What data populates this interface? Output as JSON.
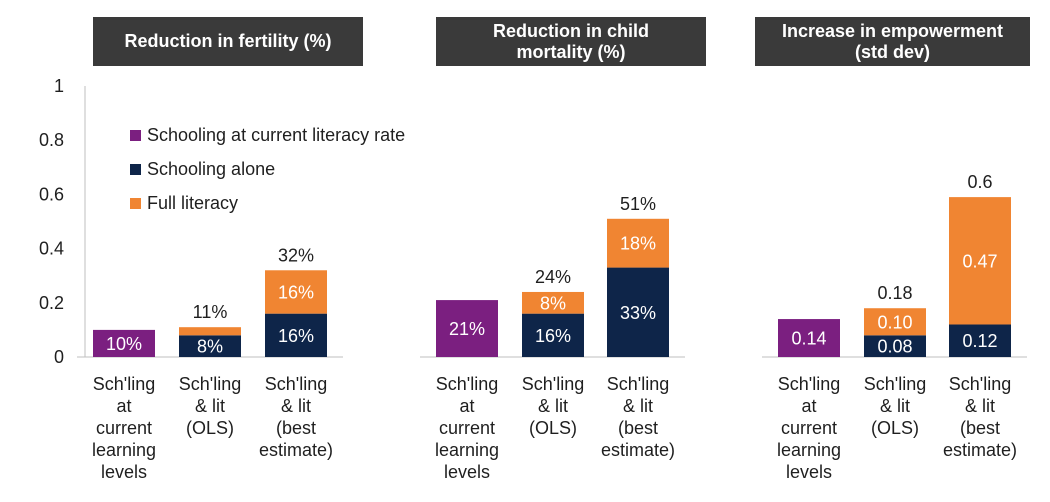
{
  "chart_data": {
    "type": "bar",
    "stacked": true,
    "ylim": [
      0,
      1
    ],
    "yticks": [
      "0",
      "0.2",
      "0.4",
      "0.6",
      "0.8",
      "1"
    ],
    "grid": false,
    "legend": {
      "position": "top-left",
      "entries": [
        {
          "label": "Schooling at current literacy rate",
          "color": "#7b1f80"
        },
        {
          "label": "Schooling alone",
          "color": "#0e2549"
        },
        {
          "label": "Full literacy",
          "color": "#f08532"
        }
      ]
    },
    "colors": {
      "schooling_current": "#7b1f80",
      "schooling_alone": "#0e2549",
      "full_literacy": "#f08532"
    },
    "panels": [
      {
        "title": "Reduction in fertility (%)",
        "categories": [
          [
            "Sch'ling",
            "at",
            "current",
            "learning",
            "levels"
          ],
          [
            "Sch'ling",
            "& lit",
            "(OLS)"
          ],
          [
            "Sch'ling",
            "& lit",
            "(best",
            "estimate)"
          ]
        ],
        "bars": [
          {
            "segments": [
              {
                "series": "Schooling at current literacy rate",
                "value": 0.1,
                "label": "10%"
              }
            ],
            "total_label": ""
          },
          {
            "segments": [
              {
                "series": "Schooling alone",
                "value": 0.08,
                "label": "8%"
              },
              {
                "series": "Full literacy",
                "value": 0.03,
                "label": ""
              }
            ],
            "total_label": "11%"
          },
          {
            "segments": [
              {
                "series": "Schooling alone",
                "value": 0.16,
                "label": "16%"
              },
              {
                "series": "Full literacy",
                "value": 0.16,
                "label": "16%"
              }
            ],
            "total_label": "32%"
          }
        ]
      },
      {
        "title": "Reduction in child mortality (%)",
        "title_lines": [
          "Reduction in child",
          "mortality (%)"
        ],
        "categories": [
          [
            "Sch'ling",
            "at",
            "current",
            "learning",
            "levels"
          ],
          [
            "Sch'ling",
            "& lit",
            "(OLS)"
          ],
          [
            "Sch'ling",
            "& lit",
            "(best",
            "estimate)"
          ]
        ],
        "bars": [
          {
            "segments": [
              {
                "series": "Schooling at current literacy rate",
                "value": 0.21,
                "label": "21%"
              }
            ],
            "total_label": ""
          },
          {
            "segments": [
              {
                "series": "Schooling alone",
                "value": 0.16,
                "label": "16%"
              },
              {
                "series": "Full literacy",
                "value": 0.08,
                "label": "8%"
              }
            ],
            "total_label": "24%"
          },
          {
            "segments": [
              {
                "series": "Schooling alone",
                "value": 0.33,
                "label": "33%"
              },
              {
                "series": "Full literacy",
                "value": 0.18,
                "label": "18%"
              }
            ],
            "total_label": "51%"
          }
        ]
      },
      {
        "title": "Increase in empowerment (std dev)",
        "title_lines": [
          "Increase in empowerment",
          "(std dev)"
        ],
        "categories": [
          [
            "Sch'ling",
            "at",
            "current",
            "learning",
            "levels"
          ],
          [
            "Sch'ling",
            "& lit",
            "(OLS)"
          ],
          [
            "Sch'ling",
            "& lit",
            "(best",
            "estimate)"
          ]
        ],
        "bars": [
          {
            "segments": [
              {
                "series": "Schooling at current literacy rate",
                "value": 0.14,
                "label": "0.14"
              }
            ],
            "total_label": ""
          },
          {
            "segments": [
              {
                "series": "Schooling alone",
                "value": 0.08,
                "label": "0.08"
              },
              {
                "series": "Full literacy",
                "value": 0.1,
                "label": "0.10"
              }
            ],
            "total_label": "0.18"
          },
          {
            "segments": [
              {
                "series": "Schooling alone",
                "value": 0.12,
                "label": "0.12"
              },
              {
                "series": "Full literacy",
                "value": 0.47,
                "label": "0.47"
              }
            ],
            "total_label": "0.6"
          }
        ]
      }
    ]
  }
}
